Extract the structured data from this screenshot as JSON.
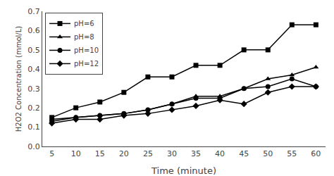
{
  "chart_data": {
    "type": "line",
    "xlabel": "Time (minute)",
    "ylabel": "H2O2 Concentration (mmol/L)",
    "x": [
      5,
      10,
      15,
      20,
      25,
      30,
      35,
      40,
      45,
      50,
      55,
      60
    ],
    "series": [
      {
        "name": "pH=6",
        "color": "#000000",
        "marker": "square",
        "line_style": "solid",
        "values": [
          0.15,
          0.2,
          0.23,
          0.28,
          0.36,
          0.36,
          0.42,
          0.42,
          0.5,
          0.5,
          0.63,
          0.63
        ]
      },
      {
        "name": "pH=8",
        "color": "#000000",
        "marker": "triangle",
        "line_style": "solid",
        "values": [
          0.14,
          0.15,
          0.16,
          0.17,
          0.19,
          0.22,
          0.26,
          0.26,
          0.3,
          0.35,
          0.37,
          0.41
        ]
      },
      {
        "name": "pH=10",
        "color": "#000000",
        "marker": "circle",
        "line_style": "solid",
        "values": [
          0.13,
          0.15,
          0.16,
          0.17,
          0.19,
          0.22,
          0.25,
          0.25,
          0.3,
          0.31,
          0.35,
          0.31
        ]
      },
      {
        "name": "pH=12",
        "color": "#000000",
        "marker": "diamond",
        "line_style": "solid",
        "values": [
          0.12,
          0.14,
          0.14,
          0.16,
          0.17,
          0.19,
          0.21,
          0.24,
          0.22,
          0.28,
          0.31,
          0.31
        ]
      }
    ],
    "xlim": [
      3,
      62
    ],
    "ylim": [
      0,
      0.7
    ],
    "xticks": [
      5,
      10,
      15,
      20,
      25,
      30,
      35,
      40,
      45,
      50,
      55,
      60
    ],
    "yticks": [
      {
        "value": 0,
        "label": "0.0"
      },
      0.1,
      0.2,
      0.3,
      0.4,
      0.5,
      0.6,
      0.7
    ],
    "grid": false,
    "legend": "upper left"
  }
}
